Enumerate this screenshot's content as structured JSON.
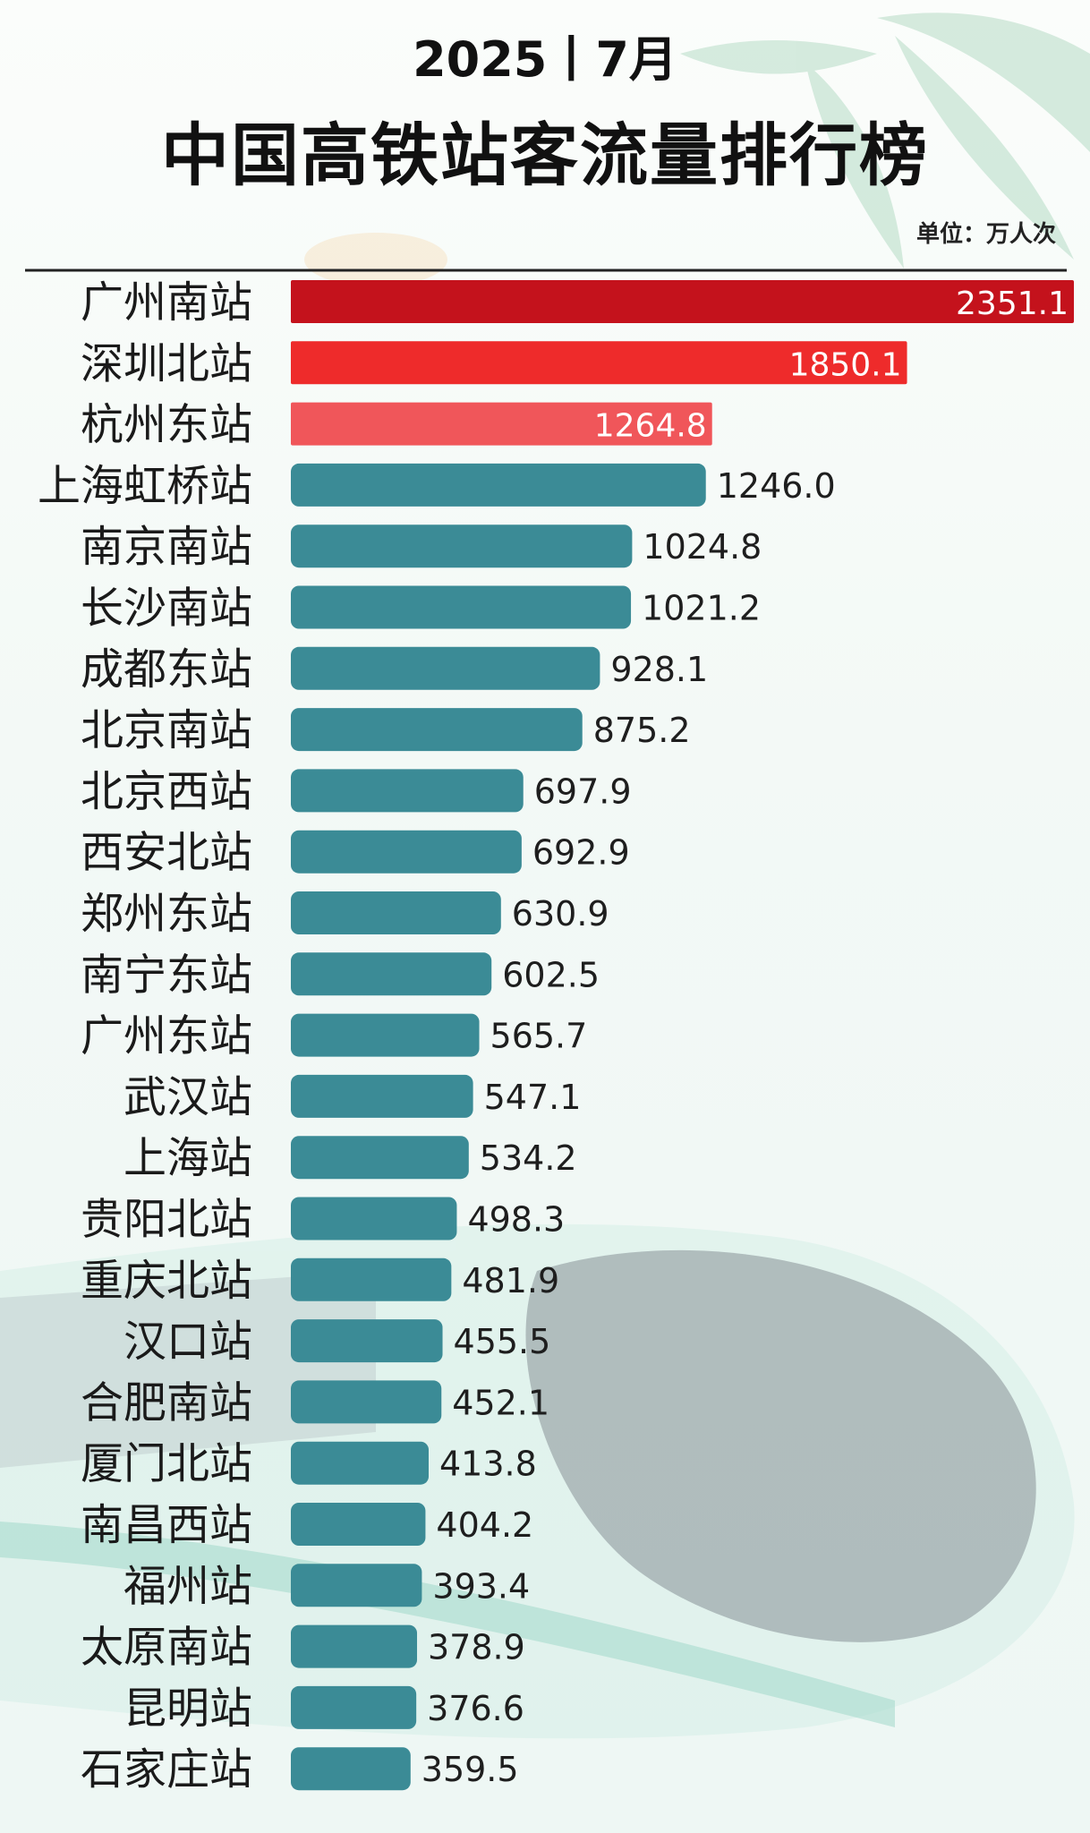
{
  "header": {
    "period": "2025丨7月",
    "title": "中国高铁站客流量排行榜",
    "unit": "单位：万人次"
  },
  "colors": {
    "top1": "#c4121c",
    "top2": "#ee2b2b",
    "top3": "#f0565a",
    "default": "#3b8b96"
  },
  "chart_data": {
    "type": "bar",
    "orientation": "horizontal",
    "title": "中国高铁站客流量排行榜",
    "unit": "单位：万人次",
    "categories": [
      "广州南站",
      "深圳北站",
      "杭州东站",
      "上海虹桥站",
      "南京南站",
      "长沙南站",
      "成都东站",
      "北京南站",
      "北京西站",
      "西安北站",
      "郑州东站",
      "南宁东站",
      "广州东站",
      "武汉站",
      "上海站",
      "贵阳北站",
      "重庆北站",
      "汉口站",
      "合肥南站",
      "厦门北站",
      "南昌西站",
      "福州站",
      "太原南站",
      "昆明站",
      "石家庄站"
    ],
    "values": [
      2351.1,
      1850.1,
      1264.8,
      1246.0,
      1024.8,
      1021.2,
      928.1,
      875.2,
      697.9,
      692.9,
      630.9,
      602.5,
      565.7,
      547.1,
      534.2,
      498.3,
      481.9,
      455.5,
      452.1,
      413.8,
      404.2,
      393.4,
      378.9,
      376.6,
      359.5
    ],
    "labels": [
      "2351.1",
      "1850.1",
      "1264.8",
      "1246.0",
      "1024.8",
      "1021.2",
      "928.1",
      "875.2",
      "697.9",
      "692.9",
      "630.9",
      "602.5",
      "565.7",
      "547.1",
      "534.2",
      "498.3",
      "481.9",
      "455.5",
      "452.1",
      "413.8",
      "404.2",
      "393.4",
      "378.9",
      "376.6",
      "359.5"
    ],
    "xlim": [
      0,
      2351.1
    ],
    "grid": false,
    "legend": "none"
  }
}
